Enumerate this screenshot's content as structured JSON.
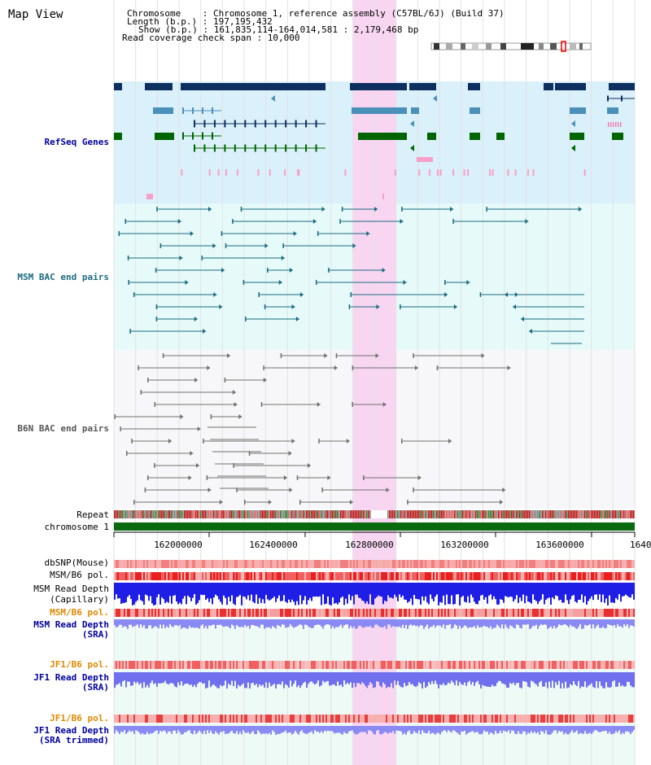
{
  "page": {
    "title": "Map View"
  },
  "info": {
    "line1": "Chromosome    : Chromosome 1, reference assembly (C57BL/6J) (Build 37)",
    "line2": "Length (b.p.) : 197,195,432",
    "line3": "Show (b.p.) : 161,835,114-164,014,581 : 2,179,468 bp",
    "line4": "Read coverage check span : 10,000"
  },
  "tracks": {
    "refseq": "RefSeq Genes",
    "msm_bac": "MSM BAC end pairs",
    "b6n_bac": "B6N BAC end pairs",
    "repeat": "Repeat",
    "chromosome": "chromosome 1",
    "dbsnp": "dbSNP(Mouse)",
    "msm_b6_pol_1": "MSM/B6 pol.",
    "msm_read_depth_cap_1": "MSM Read Depth",
    "msm_read_depth_cap_2": "(Capillary)",
    "msm_b6_pol_2": "MSM/B6 pol.",
    "msm_read_depth_sra_1": "MSM Read Depth",
    "msm_read_depth_sra_2": "(SRA)",
    "jf1_b6_pol_1": "JF1/B6 pol.",
    "jf1_read_depth_sra_1": "JF1 Read Depth",
    "jf1_read_depth_sra_2": "(SRA)",
    "jf1_b6_pol_2": "JF1/B6 pol.",
    "jf1_read_depth_trim_1": "JF1 Read Depth",
    "jf1_read_depth_trim_2": "(SRA trimmed)"
  },
  "axis": {
    "ticks": [
      "162000000",
      "162400000",
      "162800000",
      "163200000",
      "163600000",
      "1640"
    ]
  },
  "colors": {
    "refseq_bg": "#daf0fa",
    "msm_bg": "#e6fafa",
    "b6n_bg": "#f5f5f8",
    "highlight": "#f8d6f2",
    "dark_blue": "#0d3060",
    "mid_blue": "#4a90b8",
    "green": "#006400",
    "teal": "#1a6a80",
    "gray": "#707070",
    "depth_blue": "#2020e0",
    "depth_light": "#8080f0",
    "pol_red": "#e82020",
    "label_blue": "#0000a0",
    "label_orange": "#e08800"
  }
}
